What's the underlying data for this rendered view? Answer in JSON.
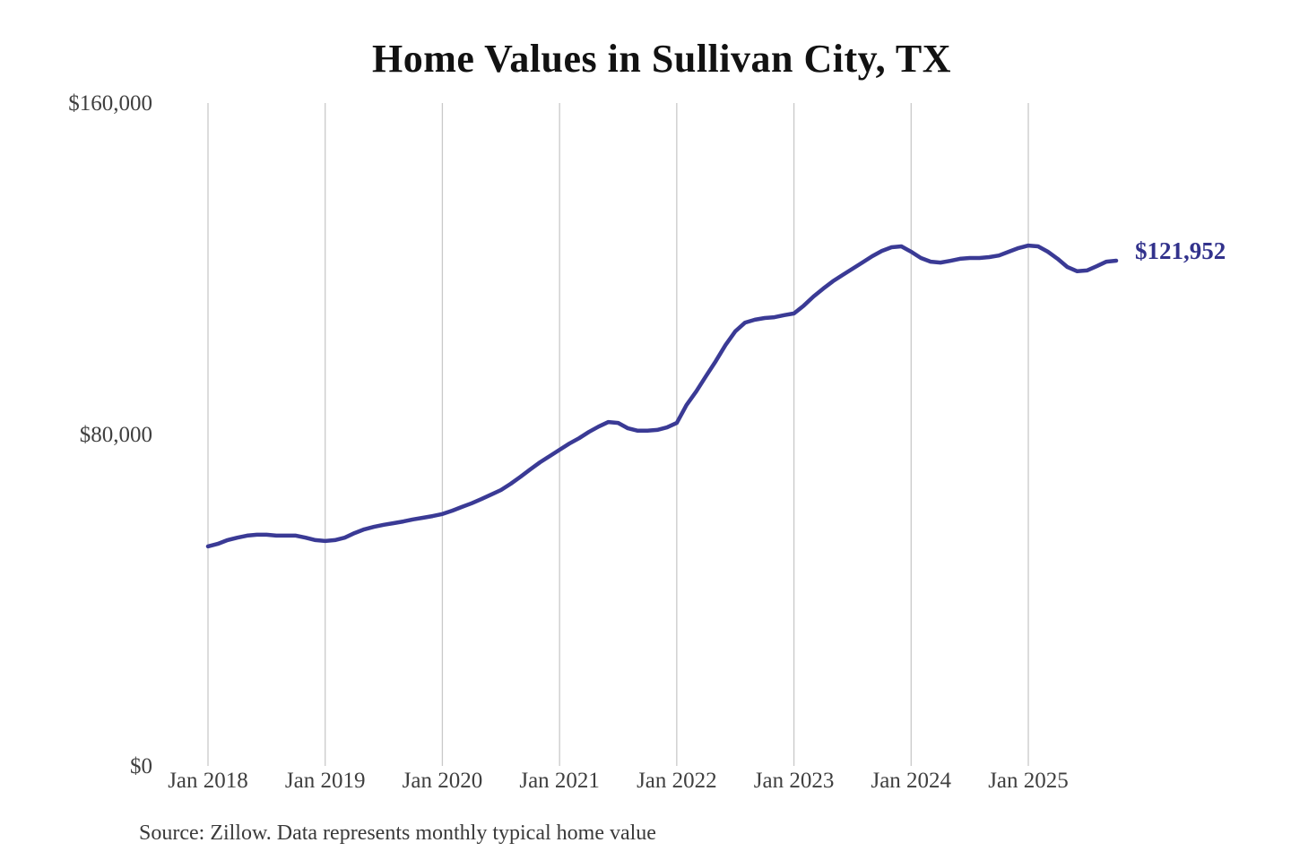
{
  "chart_data": {
    "type": "line",
    "title": "Home Values in Sullivan City, TX",
    "xlabel": "",
    "ylabel": "",
    "unit": "USD",
    "grid": "vertical-yearly-only",
    "legend": "none",
    "line_color": "#3a3a95",
    "gridline_color": "#c9c9c9",
    "tick_label_color": "#3f3f3f",
    "end_label": "$121,952",
    "end_label_color": "#32328c",
    "ylim": [
      0,
      160000
    ],
    "y_ticks": [
      {
        "label": "$0",
        "value": 0
      },
      {
        "label": "$80,000",
        "value": 80000
      },
      {
        "label": "$160,000",
        "value": 160000
      }
    ],
    "x_ticks": [
      "Jan 2018",
      "Jan 2019",
      "Jan 2020",
      "Jan 2021",
      "Jan 2022",
      "Jan 2023",
      "Jan 2024",
      "Jan 2025"
    ],
    "x_start": "2018-01",
    "x_end": "2025-10",
    "series": [
      {
        "name": "Monthly typical home value",
        "monthly_values": [
          53000,
          53600,
          54500,
          55100,
          55600,
          55800,
          55800,
          55600,
          55600,
          55600,
          55100,
          54500,
          54300,
          54500,
          55100,
          56200,
          57100,
          57700,
          58200,
          58600,
          59000,
          59500,
          59900,
          60300,
          60800,
          61600,
          62500,
          63400,
          64400,
          65500,
          66600,
          68100,
          69800,
          71600,
          73300,
          74800,
          76300,
          77800,
          79100,
          80600,
          81900,
          83000,
          82800,
          81500,
          80900,
          80900,
          81100,
          81700,
          82800,
          87100,
          90400,
          94100,
          97700,
          101600,
          104900,
          107000,
          107700,
          108100,
          108300,
          108800,
          109200,
          111100,
          113300,
          115200,
          117000,
          118500,
          120000,
          121500,
          123000,
          124300,
          125200,
          125400,
          124100,
          122600,
          121700,
          121500,
          121900,
          122400,
          122600,
          122600,
          122800,
          123200,
          124100,
          125000,
          125600,
          125400,
          124100,
          122400,
          120400,
          119400,
          119600,
          120600,
          121700,
          121952
        ]
      }
    ]
  },
  "source_note": "Source: Zillow. Data represents monthly typical home value"
}
